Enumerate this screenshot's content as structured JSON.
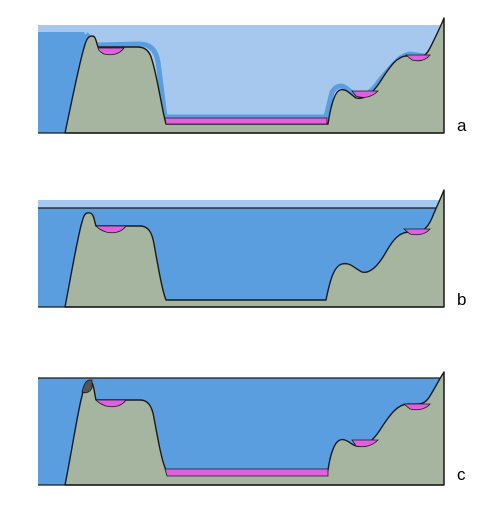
{
  "panels": [
    {
      "label": "a"
    },
    {
      "label": "b"
    },
    {
      "label": "c"
    }
  ],
  "colors": {
    "terrain": "#a5b5a0",
    "outline": "#1a1a1a",
    "deep_water": "#5a9ee0",
    "shallow_water": "#a6c8ef",
    "deposit": "#e060e0",
    "rock": "#555555",
    "background": "#ffffff"
  }
}
